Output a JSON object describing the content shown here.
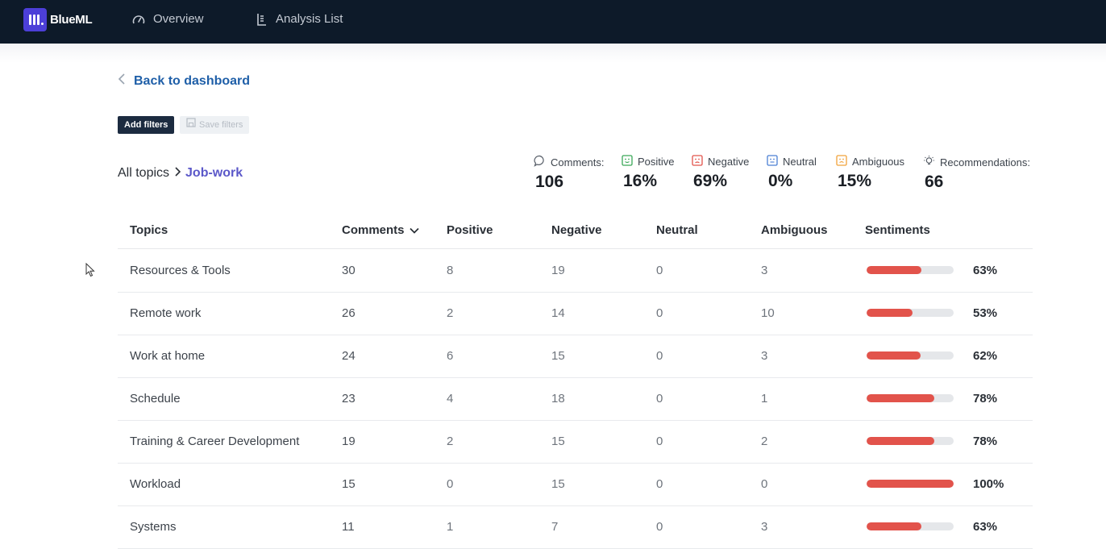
{
  "app": {
    "name": "BlueML"
  },
  "nav": {
    "items": [
      {
        "label": "Overview"
      },
      {
        "label": "Analysis List"
      }
    ]
  },
  "back": {
    "label": "Back to dashboard"
  },
  "filters": {
    "add_label": "Add filters",
    "save_label": "Save filters"
  },
  "breadcrumb": {
    "root": "All topics",
    "current": "Job-work"
  },
  "stats": [
    {
      "label": "Comments:",
      "value": "106",
      "icon": "comment-icon",
      "color": "#6c7480"
    },
    {
      "label": "Positive",
      "value": "16%",
      "icon": "positive-face-icon",
      "color": "#3aa757"
    },
    {
      "label": "Negative",
      "value": "69%",
      "icon": "negative-face-icon",
      "color": "#e2534b"
    },
    {
      "label": "Neutral",
      "value": "0%",
      "icon": "neutral-face-icon",
      "color": "#4a7fd4"
    },
    {
      "label": "Ambiguous",
      "value": "15%",
      "icon": "ambiguous-face-icon",
      "color": "#f0a23a"
    },
    {
      "label": "Recommendations:",
      "value": "66",
      "icon": "lightbulb-icon",
      "color": "#6c7480"
    }
  ],
  "table": {
    "headers": {
      "topics": "Topics",
      "comments": "Comments",
      "positive": "Positive",
      "negative": "Negative",
      "neutral": "Neutral",
      "ambiguous": "Ambiguous",
      "sentiments": "Sentiments"
    },
    "sort": {
      "column": "comments",
      "direction": "descending"
    },
    "rows": [
      {
        "topic": "Resources & Tools",
        "comments": "30",
        "positive": "8",
        "negative": "19",
        "neutral": "0",
        "ambiguous": "3",
        "sentiment": "63%",
        "sentiment_value": 63
      },
      {
        "topic": "Remote work",
        "comments": "26",
        "positive": "2",
        "negative": "14",
        "neutral": "0",
        "ambiguous": "10",
        "sentiment": "53%",
        "sentiment_value": 53
      },
      {
        "topic": "Work at home",
        "comments": "24",
        "positive": "6",
        "negative": "15",
        "neutral": "0",
        "ambiguous": "3",
        "sentiment": "62%",
        "sentiment_value": 62
      },
      {
        "topic": "Schedule",
        "comments": "23",
        "positive": "4",
        "negative": "18",
        "neutral": "0",
        "ambiguous": "1",
        "sentiment": "78%",
        "sentiment_value": 78
      },
      {
        "topic": "Training & Career Development",
        "comments": "19",
        "positive": "2",
        "negative": "15",
        "neutral": "0",
        "ambiguous": "2",
        "sentiment": "78%",
        "sentiment_value": 78
      },
      {
        "topic": "Workload",
        "comments": "15",
        "positive": "0",
        "negative": "15",
        "neutral": "0",
        "ambiguous": "0",
        "sentiment": "100%",
        "sentiment_value": 100
      },
      {
        "topic": "Systems",
        "comments": "11",
        "positive": "1",
        "negative": "7",
        "neutral": "0",
        "ambiguous": "3",
        "sentiment": "63%",
        "sentiment_value": 63
      }
    ]
  },
  "colors": {
    "brand": "#4c3fd8",
    "nav_bg": "#0d1a29",
    "link": "#1f5fa8",
    "topic_accent": "#5b58c9",
    "bar": "#e2534b"
  }
}
